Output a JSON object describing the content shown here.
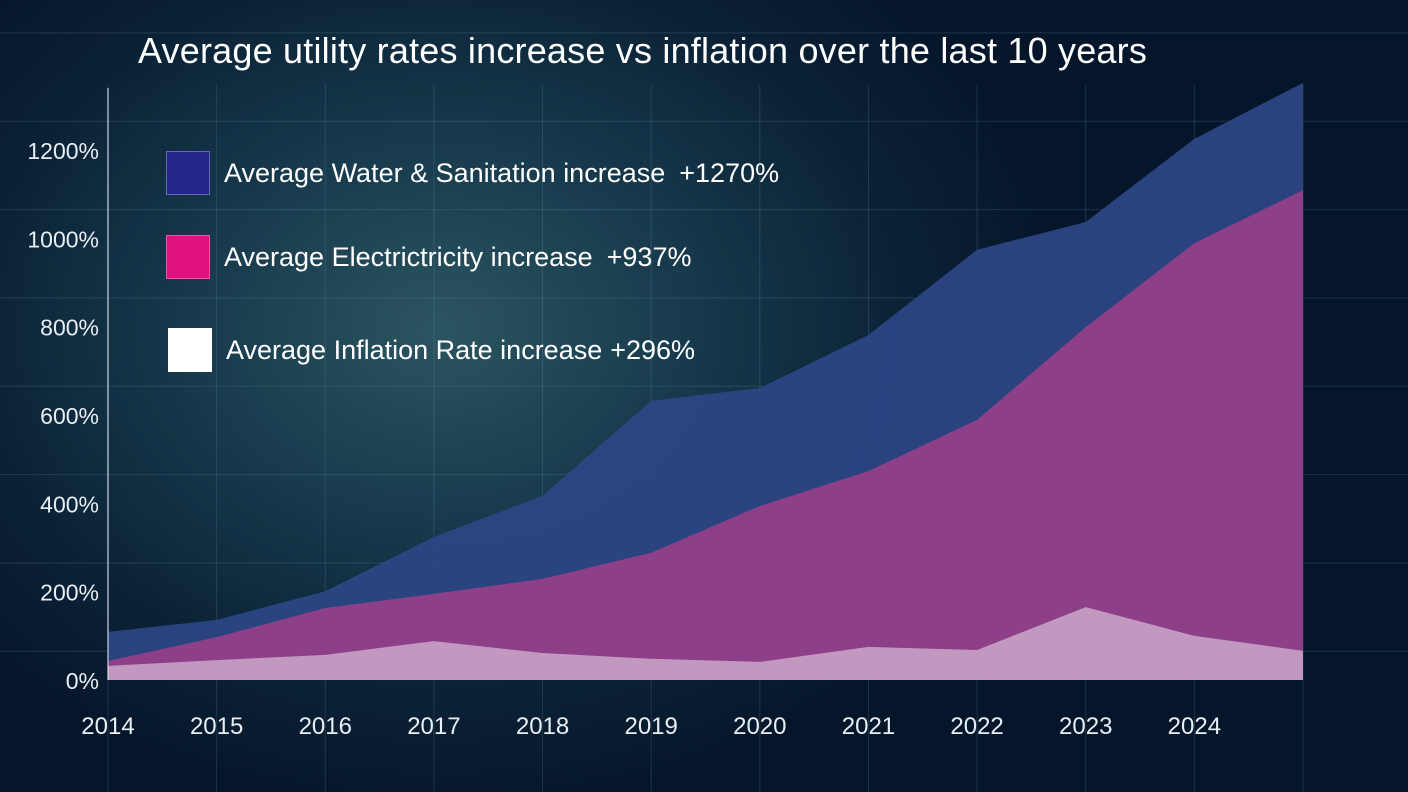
{
  "chart_data": {
    "type": "area",
    "title": "Average utility rates increase vs inflation over the last 10 years",
    "xlabel": "",
    "ylabel": "",
    "x_tick_labels": [
      "2014",
      "2015",
      "2016",
      "2017",
      "2018",
      "2019",
      "2020",
      "2021",
      "2022",
      "2023",
      "2024"
    ],
    "y_tick_labels": [
      "0%",
      "200%",
      "400%",
      "600%",
      "800%",
      "1000%",
      "1200%"
    ],
    "ylim": [
      0,
      1350
    ],
    "grid": true,
    "legend_placement": "top-left",
    "series": [
      {
        "name": "Average Water & Sanitation increase",
        "legend_value": "+1270%",
        "color": "#2c4684",
        "swatch_color": "#23278a",
        "values": [
          109,
          136,
          201,
          324,
          417,
          632,
          661,
          781,
          974,
          1037,
          1225,
          1352
        ]
      },
      {
        "name": "Average Electrictricity increase",
        "legend_value": "+937%",
        "color": "#913f88",
        "swatch_color": "#e0107f",
        "values": [
          43,
          97,
          163,
          195,
          229,
          288,
          394,
          473,
          589,
          799,
          989,
          1109
        ]
      },
      {
        "name": "Average Inflation Rate increase",
        "legend_value": "+296%",
        "color": "#c49bc2",
        "swatch_color": "#ffffff",
        "values": [
          32,
          45,
          57,
          88,
          61,
          48,
          41,
          75,
          68,
          165,
          100,
          66
        ]
      }
    ]
  }
}
